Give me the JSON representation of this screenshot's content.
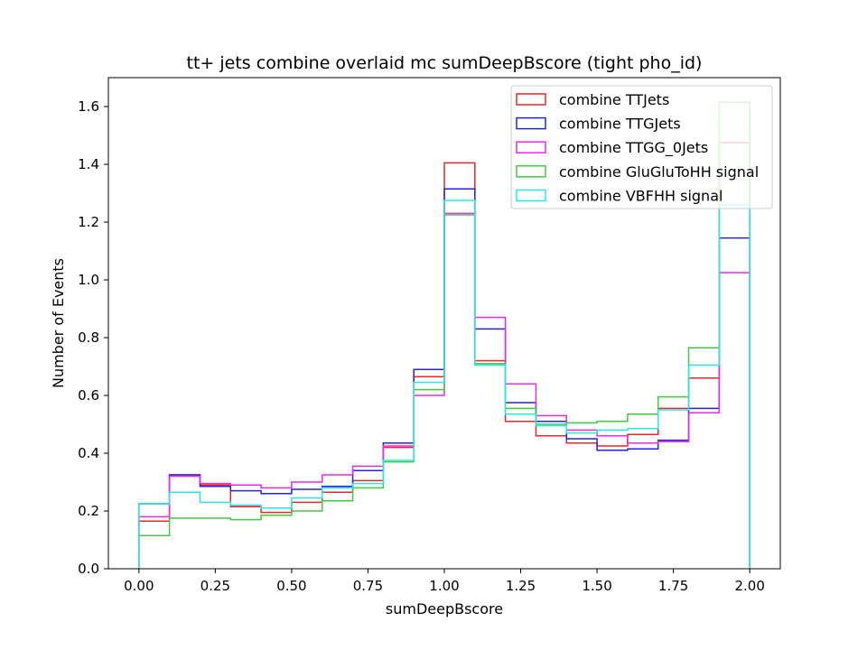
{
  "chart_data": {
    "type": "histogram-step",
    "title": "tt+ jets combine overlaid mc sumDeepBscore (tight pho_id)",
    "xlabel": "sumDeepBscore",
    "ylabel": "Number of Events",
    "xlim": [
      -0.1,
      2.1
    ],
    "ylim": [
      0,
      1.7
    ],
    "xticks": [
      0.0,
      0.25,
      0.5,
      0.75,
      1.0,
      1.25,
      1.5,
      1.75,
      2.0
    ],
    "xtick_labels": [
      "0.00",
      "0.25",
      "0.50",
      "0.75",
      "1.00",
      "1.25",
      "1.50",
      "1.75",
      "2.00"
    ],
    "yticks": [
      0.0,
      0.2,
      0.4,
      0.6,
      0.8,
      1.0,
      1.2,
      1.4,
      1.6
    ],
    "ytick_labels": [
      "0.0",
      "0.2",
      "0.4",
      "0.6",
      "0.8",
      "1.0",
      "1.2",
      "1.4",
      "1.6"
    ],
    "grid": false,
    "legend_position": "top-right",
    "bin_edges": [
      0.0,
      0.1,
      0.2,
      0.3,
      0.4,
      0.5,
      0.6,
      0.7,
      0.8,
      0.9,
      1.0,
      1.1,
      1.2,
      1.3,
      1.4,
      1.5,
      1.6,
      1.7,
      1.8,
      1.9,
      2.0
    ],
    "series": [
      {
        "name": "combine TTJets",
        "color": "#e8282a",
        "values": [
          0.165,
          0.325,
          0.29,
          0.215,
          0.195,
          0.23,
          0.265,
          0.305,
          0.42,
          0.665,
          1.405,
          0.72,
          0.51,
          0.46,
          0.435,
          0.425,
          0.465,
          0.555,
          0.66,
          1.475
        ]
      },
      {
        "name": "combine TTGJets",
        "color": "#2525d6",
        "values": [
          0.225,
          0.325,
          0.285,
          0.27,
          0.26,
          0.275,
          0.285,
          0.34,
          0.435,
          0.69,
          1.315,
          0.83,
          0.575,
          0.51,
          0.45,
          0.41,
          0.415,
          0.445,
          0.555,
          1.145
        ]
      },
      {
        "name": "combine TTGG_0Jets",
        "color": "#e82be8",
        "values": [
          0.18,
          0.32,
          0.295,
          0.29,
          0.28,
          0.3,
          0.325,
          0.355,
          0.425,
          0.6,
          1.23,
          0.87,
          0.64,
          0.53,
          0.48,
          0.46,
          0.435,
          0.44,
          0.54,
          1.025
        ]
      },
      {
        "name": "combine GluGluToHH signal",
        "color": "#44c844",
        "values": [
          0.115,
          0.175,
          0.175,
          0.17,
          0.185,
          0.2,
          0.235,
          0.28,
          0.37,
          0.62,
          1.225,
          0.71,
          0.555,
          0.5,
          0.505,
          0.51,
          0.535,
          0.595,
          0.765,
          1.615
        ]
      },
      {
        "name": "combine VBFHH signal",
        "color": "#2be8e8",
        "values": [
          0.225,
          0.265,
          0.23,
          0.22,
          0.21,
          0.245,
          0.28,
          0.295,
          0.375,
          0.645,
          1.275,
          0.705,
          0.535,
          0.495,
          0.47,
          0.48,
          0.485,
          0.55,
          0.705,
          1.26
        ]
      }
    ]
  }
}
